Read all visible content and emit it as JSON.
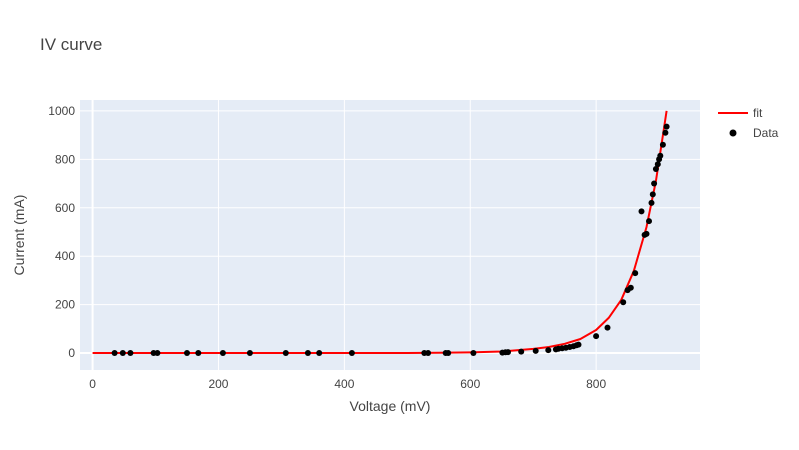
{
  "chart_data": {
    "type": "scatter",
    "title": "IV curve",
    "xlabel": "Voltage (mV)",
    "ylabel": "Current (mA)",
    "xlim": [
      -20,
      965
    ],
    "ylim": [
      -70,
      1045
    ],
    "xticks": [
      0,
      200,
      400,
      600,
      800
    ],
    "yticks": [
      0,
      200,
      400,
      600,
      800,
      1000
    ],
    "grid": true,
    "legend_position": "top-right",
    "series": [
      {
        "name": "fit",
        "kind": "line",
        "color": "#ff0000",
        "x": [
          0,
          100,
          200,
          300,
          400,
          500,
          550,
          600,
          650,
          700,
          725,
          750,
          775,
          800,
          820,
          840,
          860,
          880,
          895,
          905,
          912
        ],
        "y": [
          0,
          0,
          0,
          0,
          0,
          0.4,
          1,
          2.5,
          6.5,
          17,
          25,
          38,
          58,
          95,
          145,
          220,
          340,
          520,
          710,
          880,
          1000
        ]
      },
      {
        "name": "Data",
        "kind": "markers",
        "color": "#000000",
        "x": [
          35,
          48,
          60,
          97,
          103,
          150,
          168,
          207,
          250,
          307,
          342,
          360,
          412,
          527,
          533,
          561,
          565,
          605,
          651,
          656,
          660,
          681,
          704,
          724,
          736,
          740,
          746,
          752,
          758,
          764,
          769,
          772,
          800,
          818,
          843,
          850,
          855,
          862,
          872,
          877,
          880,
          884,
          888,
          890,
          892,
          895,
          898,
          900,
          902,
          906,
          910,
          912
        ],
        "y": [
          0,
          0,
          0,
          0,
          0,
          0,
          0,
          0,
          0,
          0,
          0,
          0,
          0,
          0,
          0,
          0,
          0,
          0,
          2,
          3,
          4,
          6,
          9,
          12,
          15,
          18,
          20,
          22,
          25,
          28,
          32,
          35,
          70,
          105,
          210,
          260,
          270,
          330,
          585,
          488,
          492,
          545,
          620,
          655,
          700,
          760,
          780,
          800,
          815,
          860,
          910,
          935
        ]
      }
    ]
  }
}
